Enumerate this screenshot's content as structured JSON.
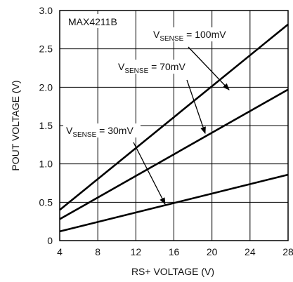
{
  "chart_data": {
    "type": "line",
    "id_label": "MAX4211B",
    "xlabel": "RS+ VOLTAGE (V)",
    "ylabel": "POUT VOLTAGE (V)",
    "xlim": [
      4,
      28
    ],
    "ylim": [
      0,
      3.0
    ],
    "xticks": [
      "4",
      "8",
      "12",
      "16",
      "20",
      "24",
      "28"
    ],
    "yticks": [
      "0",
      "0.5",
      "1.0",
      "1.5",
      "2.0",
      "2.5",
      "3.0"
    ],
    "grid": true,
    "series": [
      {
        "name": "VSENSE = 100mV",
        "label_main": "V",
        "label_sub": "SENSE",
        "label_rest": " = 100mV",
        "x": [
          4,
          28
        ],
        "y": [
          0.4,
          2.82
        ]
      },
      {
        "name": "VSENSE = 70mV",
        "label_main": "V",
        "label_sub": "SENSE",
        "label_rest": " = 70mV",
        "x": [
          4,
          28
        ],
        "y": [
          0.28,
          1.97
        ]
      },
      {
        "name": "VSENSE = 30mV",
        "label_main": "V",
        "label_sub": "SENSE",
        "label_rest": " = 30mV",
        "x": [
          4,
          28
        ],
        "y": [
          0.12,
          0.86
        ]
      }
    ]
  }
}
